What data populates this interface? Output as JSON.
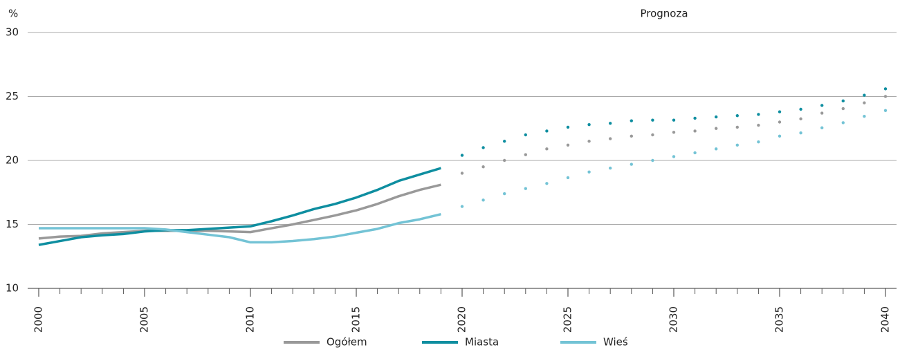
{
  "chart_data": {
    "type": "line",
    "y_unit": "%",
    "annotation": "Prognoza",
    "x": [
      2000,
      2001,
      2002,
      2003,
      2004,
      2005,
      2006,
      2007,
      2008,
      2009,
      2010,
      2011,
      2012,
      2013,
      2014,
      2015,
      2016,
      2017,
      2018,
      2019,
      2020,
      2021,
      2022,
      2023,
      2024,
      2025,
      2026,
      2027,
      2028,
      2029,
      2030,
      2031,
      2032,
      2033,
      2034,
      2035,
      2036,
      2037,
      2038,
      2039,
      2040
    ],
    "dotted_from": 2020,
    "xlim": [
      2000,
      2040
    ],
    "xticks": [
      2000,
      2005,
      2010,
      2015,
      2020,
      2025,
      2030,
      2035,
      2040
    ],
    "ylim": [
      10,
      30
    ],
    "yticks": [
      10,
      15,
      20,
      25,
      30
    ],
    "grid": true,
    "series": [
      {
        "name": "Ogółem",
        "color": "#999999",
        "values": [
          13.9,
          14.05,
          14.1,
          14.3,
          14.4,
          14.5,
          14.5,
          14.5,
          14.5,
          14.45,
          14.4,
          14.7,
          15.0,
          15.35,
          15.7,
          16.1,
          16.6,
          17.2,
          17.7,
          18.1,
          19.0,
          19.5,
          20.0,
          20.45,
          20.9,
          21.2,
          21.5,
          21.7,
          21.9,
          22.0,
          22.2,
          22.3,
          22.5,
          22.6,
          22.75,
          23.0,
          23.25,
          23.7,
          24.05,
          24.5,
          25.0
        ]
      },
      {
        "name": "Miasta",
        "color": "#0e8ea0",
        "values": [
          13.4,
          13.7,
          14.0,
          14.15,
          14.25,
          14.45,
          14.55,
          14.55,
          14.65,
          14.75,
          14.85,
          15.25,
          15.7,
          16.2,
          16.6,
          17.1,
          17.7,
          18.4,
          18.9,
          19.4,
          20.4,
          21.0,
          21.5,
          22.0,
          22.3,
          22.6,
          22.8,
          22.9,
          23.1,
          23.15,
          23.15,
          23.3,
          23.4,
          23.5,
          23.6,
          23.8,
          24.0,
          24.3,
          24.65,
          25.1,
          25.6
        ]
      },
      {
        "name": "Wieś",
        "color": "#73c3d5",
        "values": [
          14.7,
          14.7,
          14.7,
          14.7,
          14.7,
          14.7,
          14.6,
          14.4,
          14.2,
          14.0,
          13.6,
          13.6,
          13.7,
          13.85,
          14.05,
          14.35,
          14.65,
          15.1,
          15.4,
          15.8,
          16.4,
          16.9,
          17.4,
          17.8,
          18.2,
          18.65,
          19.1,
          19.4,
          19.7,
          20.0,
          20.3,
          20.6,
          20.9,
          21.2,
          21.45,
          21.9,
          22.15,
          22.55,
          22.95,
          23.45,
          23.9
        ]
      }
    ]
  }
}
